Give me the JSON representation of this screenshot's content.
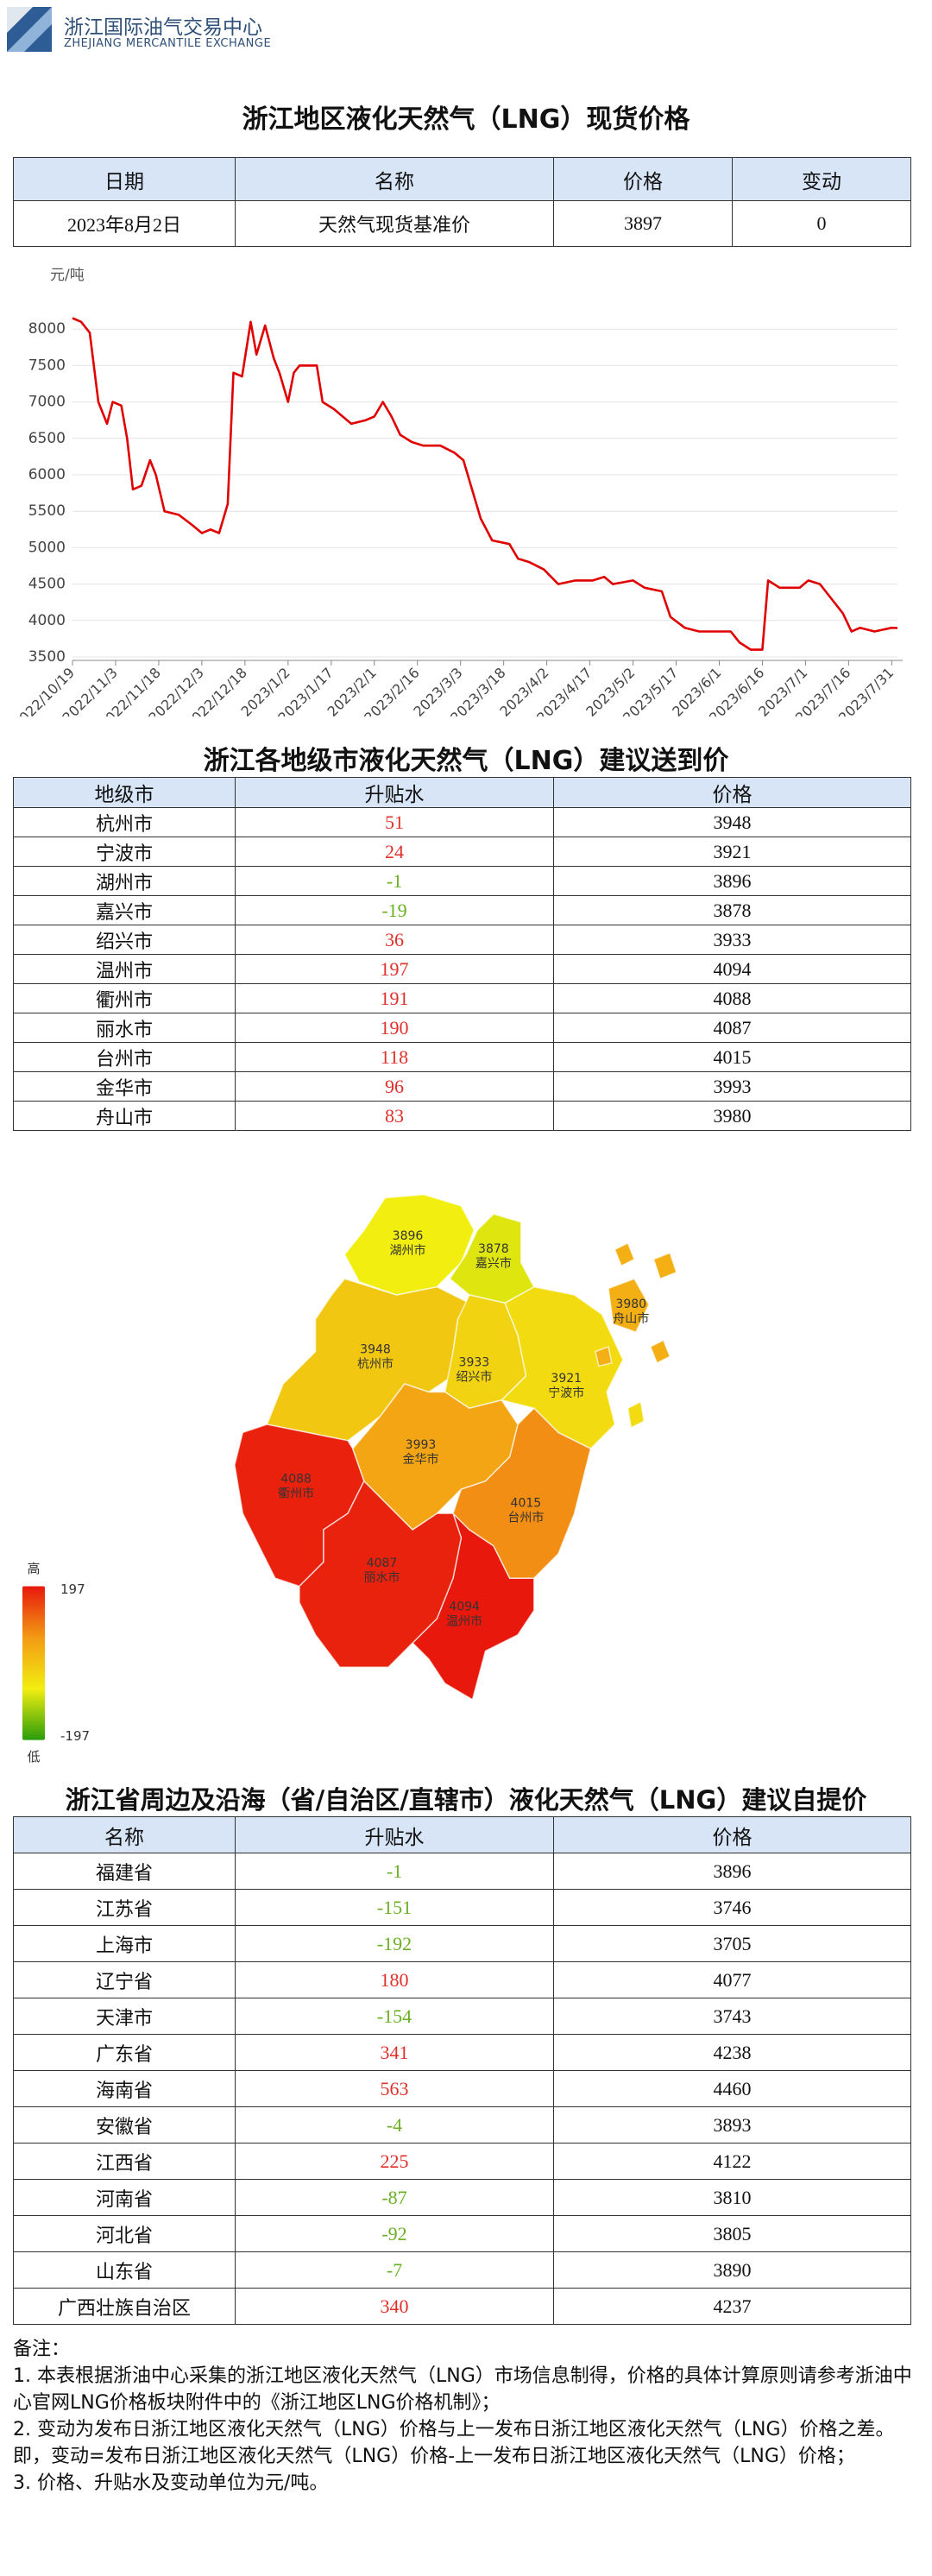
{
  "header": {
    "org_name": "浙江国际油气交易中心",
    "org_name_en": "ZHEJIANG MERCANTILE EXCHANGE"
  },
  "title": "浙江地区液化天然气（LNG）现货价格",
  "spot_table": {
    "columns": [
      "日期",
      "名称",
      "价格",
      "变动"
    ],
    "rows": [
      [
        "2023年8月2日",
        "天然气现货基准价",
        3897,
        0
      ]
    ]
  },
  "chart_data": {
    "type": "line",
    "y_label": "元/吨",
    "color": "#e00000",
    "grid": true,
    "x": [
      "2022/10/19",
      "2022/10/22",
      "2022/10/25",
      "2022/10/28",
      "2022/10/31",
      "2022/11/2",
      "2022/11/5",
      "2022/11/7",
      "2022/11/9",
      "2022/11/12",
      "2022/11/15",
      "2022/11/17",
      "2022/11/20",
      "2022/11/25",
      "2022/11/30",
      "2022/12/3",
      "2022/12/6",
      "2022/12/9",
      "2022/12/12",
      "2022/12/14",
      "2022/12/17",
      "2022/12/20",
      "2022/12/22",
      "2022/12/25",
      "2022/12/28",
      "2022/12/30",
      "2023/1/2",
      "2023/1/4",
      "2023/1/6",
      "2023/1/12",
      "2023/1/14",
      "2023/1/18",
      "2023/1/21",
      "2023/1/24",
      "2023/1/29",
      "2023/2/1",
      "2023/2/4",
      "2023/2/7",
      "2023/2/10",
      "2023/2/14",
      "2023/2/18",
      "2023/2/24",
      "2023/3/1",
      "2023/3/4",
      "2023/3/7",
      "2023/3/10",
      "2023/3/14",
      "2023/3/20",
      "2023/3/23",
      "2023/3/27",
      "2023/4/1",
      "2023/4/6",
      "2023/4/12",
      "2023/4/18",
      "2023/4/22",
      "2023/4/25",
      "2023/5/2",
      "2023/5/6",
      "2023/5/12",
      "2023/5/15",
      "2023/5/20",
      "2023/5/25",
      "2023/6/1",
      "2023/6/5",
      "2023/6/8",
      "2023/6/12",
      "2023/6/16",
      "2023/6/18",
      "2023/6/22",
      "2023/6/29",
      "2023/7/2",
      "2023/7/6",
      "2023/7/10",
      "2023/7/14",
      "2023/7/17",
      "2023/7/20",
      "2023/7/25",
      "2023/7/31",
      "2023/8/2"
    ],
    "values": [
      8150,
      8100,
      7950,
      7000,
      6700,
      7000,
      6950,
      6500,
      5800,
      5850,
      6200,
      6000,
      5500,
      5450,
      5300,
      5200,
      5250,
      5200,
      5600,
      7400,
      7350,
      8100,
      7650,
      8050,
      7600,
      7400,
      7000,
      7400,
      7500,
      7500,
      7000,
      6900,
      6800,
      6700,
      6750,
      6800,
      7000,
      6800,
      6550,
      6450,
      6400,
      6400,
      6300,
      6200,
      5800,
      5400,
      5100,
      5050,
      4850,
      4800,
      4700,
      4500,
      4550,
      4550,
      4600,
      4500,
      4550,
      4450,
      4400,
      4050,
      3900,
      3850,
      3850,
      3850,
      3700,
      3600,
      3600,
      4550,
      4450,
      4450,
      4550,
      4500,
      4300,
      4100,
      3850,
      3900,
      3850,
      3900,
      3897
    ],
    "xlim": [
      "2022/10/19",
      "2023/8/2"
    ],
    "xticks": [
      "2022/10/19",
      "2022/11/3",
      "2022/11/18",
      "2022/12/3",
      "2022/12/18",
      "2023/1/2",
      "2023/1/17",
      "2023/2/1",
      "2023/2/16",
      "2023/3/3",
      "2023/3/18",
      "2023/4/2",
      "2023/4/17",
      "2023/5/2",
      "2023/5/17",
      "2023/6/1",
      "2023/6/16",
      "2023/7/1",
      "2023/7/16",
      "2023/7/31"
    ],
    "ylim": [
      3500,
      8500
    ],
    "yticks": [
      3500,
      4000,
      4500,
      5000,
      5500,
      6000,
      6500,
      7000,
      7500,
      8000
    ]
  },
  "city_section": {
    "title": "浙江各地级市液化天然气（LNG）建议送到价",
    "columns": [
      "地级市",
      "升贴水",
      "价格"
    ],
    "rows": [
      [
        "杭州市",
        51,
        3948
      ],
      [
        "宁波市",
        24,
        3921
      ],
      [
        "湖州市",
        -1,
        3896
      ],
      [
        "嘉兴市",
        -19,
        3878
      ],
      [
        "绍兴市",
        36,
        3933
      ],
      [
        "温州市",
        197,
        4094
      ],
      [
        "衢州市",
        191,
        4088
      ],
      [
        "丽水市",
        190,
        4087
      ],
      [
        "台州市",
        118,
        4015
      ],
      [
        "金华市",
        96,
        3993
      ],
      [
        "舟山市",
        83,
        3980
      ]
    ]
  },
  "map": {
    "legend_high": "高",
    "legend_low": "低",
    "visual_min": -197,
    "visual_max": 197,
    "colors": [
      "#2a9d0a",
      "#f2ee10",
      "#f39a14",
      "#e8180c"
    ]
  },
  "province_section": {
    "title": "浙江省周边及沿海（省/自治区/直辖市）液化天然气（LNG）建议自提价",
    "columns": [
      "名称",
      "升贴水",
      "价格"
    ],
    "rows": [
      [
        "福建省",
        -1,
        3896
      ],
      [
        "江苏省",
        -151,
        3746
      ],
      [
        "上海市",
        -192,
        3705
      ],
      [
        "辽宁省",
        180,
        4077
      ],
      [
        "天津市",
        -154,
        3743
      ],
      [
        "广东省",
        341,
        4238
      ],
      [
        "海南省",
        563,
        4460
      ],
      [
        "安徽省",
        -4,
        3893
      ],
      [
        "江西省",
        225,
        4122
      ],
      [
        "河南省",
        -87,
        3810
      ],
      [
        "河北省",
        -92,
        3805
      ],
      [
        "山东省",
        -7,
        3890
      ],
      [
        "广西壮族自治区",
        340,
        4237
      ]
    ]
  },
  "notes": {
    "heading": "备注：",
    "items": [
      "1. 本表根据浙油中心采集的浙江地区液化天然气（LNG）市场信息制得，价格的具体计算原则请参考浙油中心官网LNG价格板块附件中的《浙江地区LNG价格机制》；",
      "2. 变动为发布日浙江地区液化天然气（LNG）价格与上一发布日浙江地区液化天然气（LNG）价格之差。即，变动=发布日浙江地区液化天然气（LNG）价格-上一发布日浙江地区液化天然气（LNG）价格；",
      "3. 价格、升贴水及变动单位为元/吨。"
    ]
  }
}
